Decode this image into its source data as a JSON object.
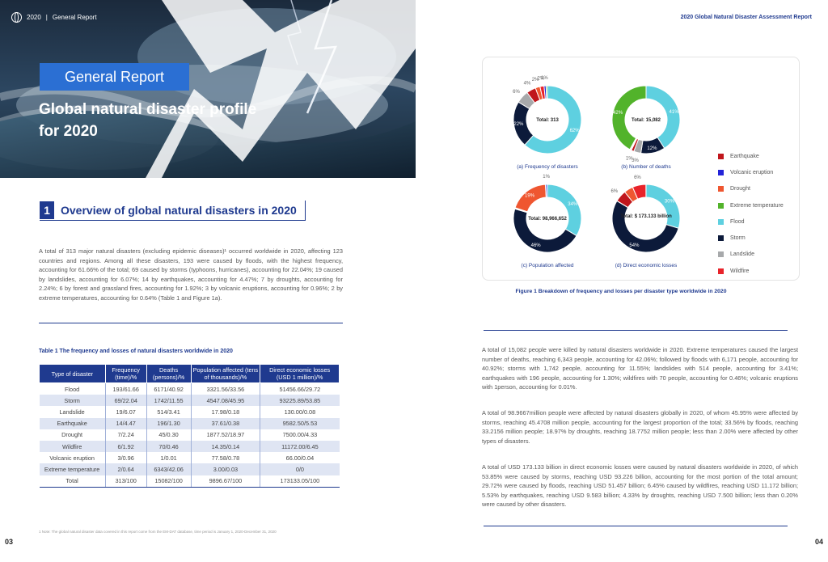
{
  "header": {
    "year": "2020",
    "section": "General Report",
    "report_title": "2020 Global Natural Disaster Assessment Report"
  },
  "hero": {
    "badge": "General Report",
    "title": "Global natural disaster profile for 2020"
  },
  "section": {
    "number": "1",
    "title": "Overview of global natural disasters in 2020"
  },
  "intro_text": "A total of 313 major natural disasters (excluding epidemic diseases)¹ occurred worldwide in 2020, affecting 123 countries and regions. Among all these disasters, 193 were caused by floods, with the highest frequency, accounting for 61.66% of the total; 69 caused by storms (typhoons, hurricanes), accounting for 22.04%; 19 caused by landslides, accounting for 6.07%; 14 by earthquakes, accounting for 4.47%; 7 by droughts, accounting for 2.24%; 6 by forest and grassland fires, accounting for 1.92%; 3 by volcanic eruptions, accounting for 0.96%; 2 by extreme temperatures, accounting for 0.64% (Table 1 and Figure 1a).",
  "table": {
    "caption": "Table 1 The frequency and losses of natural disasters worldwide in 2020",
    "headers": [
      "Type of disaster",
      "Frequency (time)/%",
      "Deaths (persons)/%",
      "Population affected (tens of thousands)/%",
      "Direct economic losses (USD 1 million)/%"
    ],
    "rows": [
      [
        "Flood",
        "193/61.66",
        "6171/40.92",
        "3321.56/33.56",
        "51456.66/29.72"
      ],
      [
        "Storm",
        "69/22.04",
        "1742/11.55",
        "4547.08/45.95",
        "93225.89/53.85"
      ],
      [
        "Landslide",
        "19/6.07",
        "514/3.41",
        "17.98/0.18",
        "130.00/0.08"
      ],
      [
        "Earthquake",
        "14/4.47",
        "196/1.30",
        "37.61/0.38",
        "9582.50/5.53"
      ],
      [
        "Drought",
        "7/2.24",
        "45/0.30",
        "1877.52/18.97",
        "7500.00/4.33"
      ],
      [
        "Wildfire",
        "6/1.92",
        "70/0.46",
        "14.35/0.14",
        "11172.00/6.45"
      ],
      [
        "Volcanic eruption",
        "3/0.96",
        "1/0.01",
        "77.58/0.78",
        "66.00/0.04"
      ],
      [
        "Extreme temperature",
        "2/0.64",
        "6343/42.06",
        "3.00/0.03",
        "0/0"
      ],
      [
        "Total",
        "313/100",
        "15082/100",
        "9896.67/100",
        "173133.05/100"
      ]
    ]
  },
  "footnote": "1 Note: The global natural disaster data covered in this report come from the EM-DAT database, time period is January 1, 2020-December 31, 2020",
  "page_left": "03",
  "page_right": "04",
  "figure": {
    "caption": "Figure 1 Breakdown of frequency and losses per disaster type worldwide in 2020",
    "legend": [
      {
        "label": "Earthquake",
        "color": "#c0161c"
      },
      {
        "label": "Volcanic eruption",
        "color": "#2323d8"
      },
      {
        "label": "Drought",
        "color": "#ef5630"
      },
      {
        "label": "Extreme temperature",
        "color": "#52b32b"
      },
      {
        "label": "Flood",
        "color": "#5ed0e0"
      },
      {
        "label": "Storm",
        "color": "#0c1a3a"
      },
      {
        "label": "Landslide",
        "color": "#a7a9ab"
      },
      {
        "label": "Wildfire",
        "color": "#e8232a"
      }
    ]
  },
  "chart_data": [
    {
      "type": "pie",
      "title": "(a) Frequency of disasters",
      "center_label": "Total: 313",
      "categories": [
        "Flood",
        "Storm",
        "Landslide",
        "Earthquake",
        "Drought",
        "Wildfire",
        "Volcanic eruption",
        "Extreme temperature"
      ],
      "values": [
        61.66,
        22.04,
        6.07,
        4.47,
        2.24,
        1.92,
        0.96,
        0.64
      ],
      "slice_labels": [
        "62%",
        "22%",
        "6%",
        "4%",
        "2%",
        "2%",
        "1%",
        ""
      ]
    },
    {
      "type": "pie",
      "title": "(b) Number of deaths",
      "center_label": "Total: 15,082",
      "categories": [
        "Flood",
        "Storm",
        "Landslide",
        "Earthquake",
        "Drought",
        "Wildfire",
        "Volcanic eruption",
        "Extreme temperature"
      ],
      "values": [
        40.92,
        11.55,
        3.41,
        1.3,
        0.3,
        0.46,
        0.01,
        42.06
      ],
      "slice_labels": [
        "41%",
        "12%",
        "3%",
        "1%",
        "",
        "",
        "",
        "42%"
      ]
    },
    {
      "type": "pie",
      "title": "(c) Population affected",
      "center_label": "Total: 98,966,652",
      "categories": [
        "Flood",
        "Storm",
        "Landslide",
        "Earthquake",
        "Drought",
        "Wildfire",
        "Volcanic eruption",
        "Extreme temperature"
      ],
      "values": [
        33.56,
        45.95,
        0.18,
        0.38,
        18.97,
        0.14,
        0.78,
        0.03
      ],
      "slice_labels": [
        "34%",
        "46%",
        "",
        "",
        "19%",
        "",
        "1%",
        ""
      ]
    },
    {
      "type": "pie",
      "title": "(d) Direct economic losses",
      "center_label": "Total: $ 173.133 billion",
      "categories": [
        "Flood",
        "Storm",
        "Landslide",
        "Earthquake",
        "Drought",
        "Wildfire",
        "Volcanic eruption",
        "Extreme temperature"
      ],
      "values": [
        29.72,
        53.85,
        0.08,
        5.53,
        4.33,
        6.45,
        0.04,
        0
      ],
      "slice_labels": [
        "30%",
        "54%",
        "",
        "6%",
        "",
        "6%",
        "",
        ""
      ]
    }
  ],
  "paragraphs": [
    "A total of 15,082 people were killed by natural disasters worldwide in 2020. Extreme temperatures caused the largest number of deaths, reaching 6,343 people, accounting for 42.06%; followed by floods with 6,171 people, accounting for 40.92%; storms with 1,742 people, accounting for 11.55%; landslides with 514 people, accounting for 3.41%; earthquakes with 196 people, accounting for 1.30%; wildfires with 70 people, accounting for 0.46%; volcanic eruptions with 1person, accounting for 0.01%.",
    "A total of 98.9667million people were affected by natural disasters globally in 2020, of whom 45.95% were affected by storms, reaching 45.4708 million people, accounting for the largest proportion of the total; 33.56% by floods, reaching 33.2156 million people; 18.97% by droughts, reaching 18.7752 million people; less than 2.00% were affected by other types of disasters.",
    "A total of USD 173.133 billion in direct economic losses were caused by natural disasters worldwide in 2020, of which 53.85% were caused by storms, reaching USD 93.226 billion, accounting for the most portion of the total amount; 29.72% were caused by floods, reaching USD 51.457 billion; 6.45% caused by wildfires, reaching USD 11.172 billion; 5.53% by earthquakes, reaching USD 9.583 billion; 4.33% by droughts, reaching USD 7.500 billion; less than 0.20% were caused by other disasters."
  ]
}
